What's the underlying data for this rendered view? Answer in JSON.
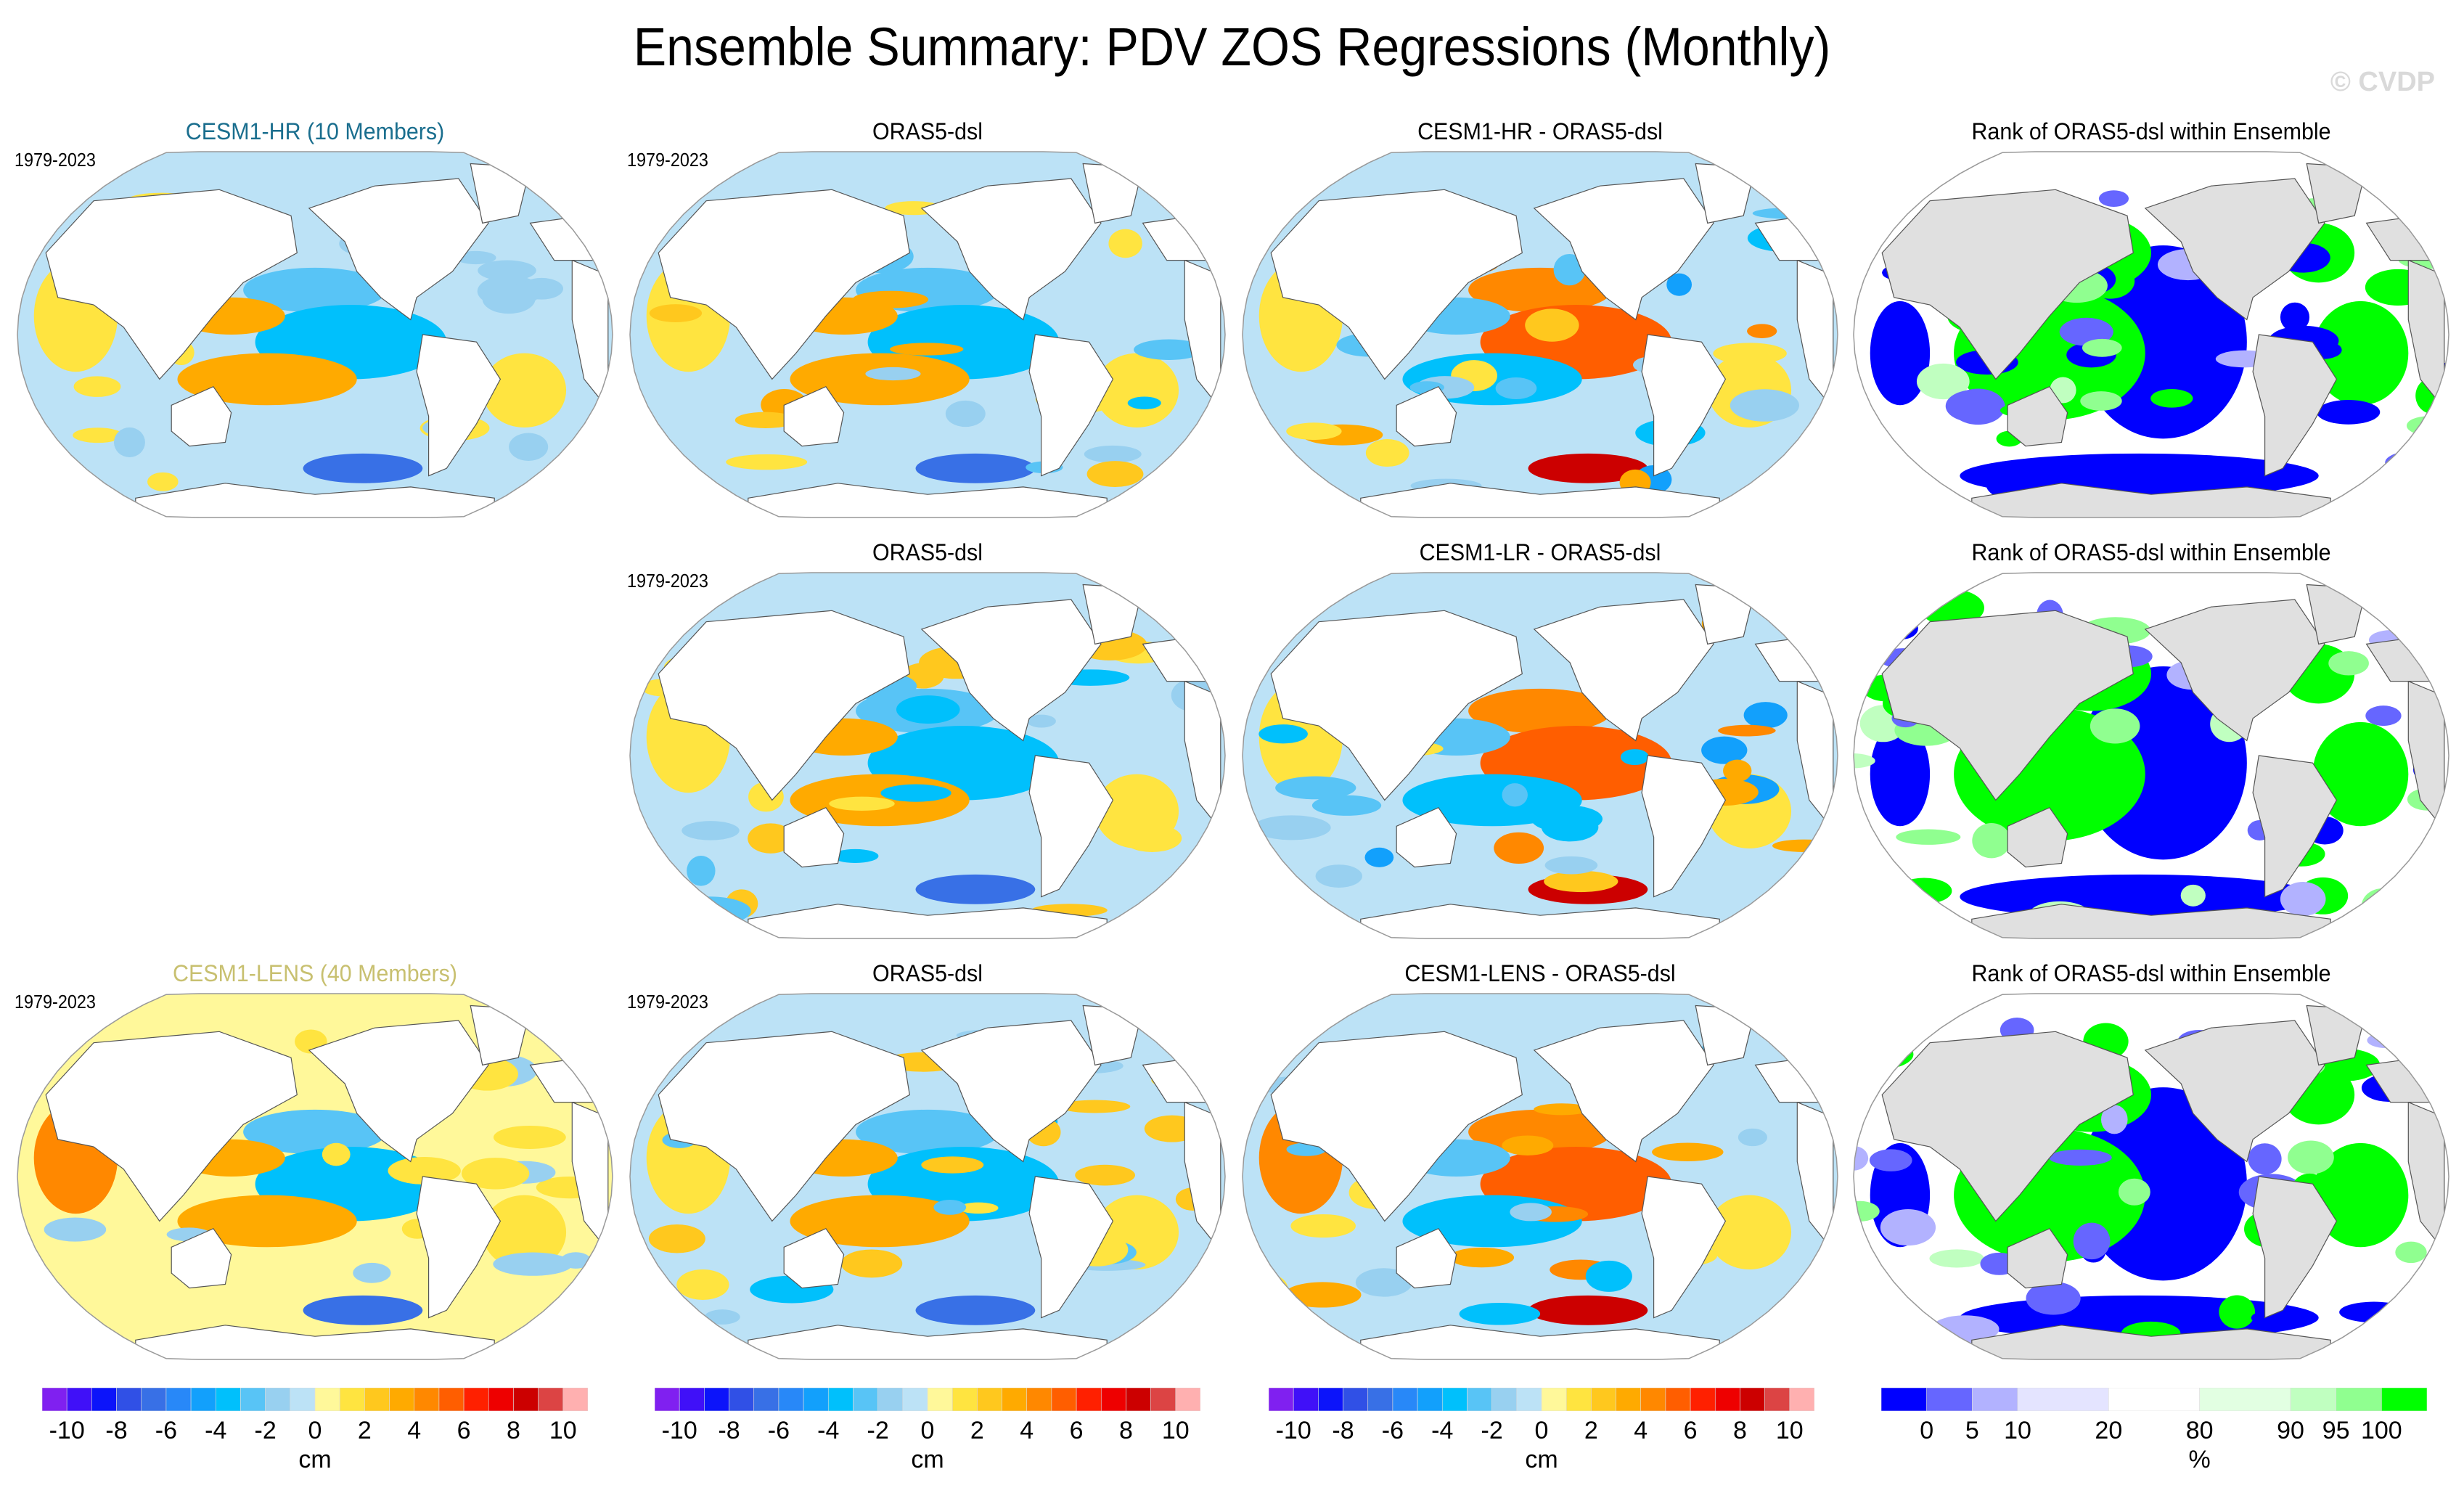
{
  "title": "Ensemble Summary: PDV ZOS Regressions (Monthly)",
  "watermark": "© CVDP",
  "chart_data": {
    "type": "heatmap",
    "title": "Ensemble Summary: PDV ZOS Regressions (Monthly)",
    "projection": "Robinson (Pacific-centered global map)",
    "period": "1979-2023",
    "rows": [
      {
        "model": "CESM1-HR (10 Members)",
        "model_color": "#1a6e8e",
        "panels": [
          {
            "title": "CESM1-HR (10 Members)",
            "years": "1979-2023",
            "kind": "regression"
          },
          {
            "title": "ORAS5-dsl",
            "years": "1979-2023",
            "kind": "regression"
          },
          {
            "title": "CESM1-HR - ORAS5-dsl",
            "years": "",
            "kind": "difference"
          },
          {
            "title": "Rank of ORAS5-dsl within Ensemble",
            "years": "",
            "kind": "rank"
          }
        ]
      },
      {
        "model": "CESM1-LR",
        "model_color": "",
        "panels": [
          null,
          {
            "title": "ORAS5-dsl",
            "years": "1979-2023",
            "kind": "regression"
          },
          {
            "title": "CESM1-LR - ORAS5-dsl",
            "years": "",
            "kind": "difference"
          },
          {
            "title": "Rank of ORAS5-dsl within Ensemble",
            "years": "",
            "kind": "rank"
          }
        ]
      },
      {
        "model": "CESM1-LENS (40 Members)",
        "model_color": "#c8c070",
        "panels": [
          {
            "title": "CESM1-LENS (40 Members)",
            "years": "1979-2023",
            "kind": "regression"
          },
          {
            "title": "ORAS5-dsl",
            "years": "1979-2023",
            "kind": "regression"
          },
          {
            "title": "CESM1-LENS - ORAS5-dsl",
            "years": "",
            "kind": "difference"
          },
          {
            "title": "Rank of ORAS5-dsl within Ensemble",
            "years": "",
            "kind": "rank"
          }
        ]
      }
    ],
    "colorbars": [
      {
        "label": "cm",
        "ticks": [
          "-10",
          "-8",
          "-6",
          "-4",
          "-2",
          "0",
          "2",
          "4",
          "6",
          "8",
          "10"
        ],
        "colors": [
          "#8020f0",
          "#4010f8",
          "#0c14fa",
          "#3050e6",
          "#3870e6",
          "#2888f8",
          "#12a0fc",
          "#00c0fc",
          "#58c4f6",
          "#98d0f0",
          "#bce2f6",
          "#fff89a",
          "#ffe440",
          "#ffc81e",
          "#ffaa00",
          "#ff8800",
          "#ff5e00",
          "#ff2000",
          "#ee0000",
          "#cc0000",
          "#dc4444",
          "#ffb0b0"
        ]
      },
      {
        "label": "cm",
        "ticks": [
          "-10",
          "-8",
          "-6",
          "-4",
          "-2",
          "0",
          "2",
          "4",
          "6",
          "8",
          "10"
        ],
        "colors": [
          "#8020f0",
          "#4010f8",
          "#0c14fa",
          "#3050e6",
          "#3870e6",
          "#2888f8",
          "#12a0fc",
          "#00c0fc",
          "#58c4f6",
          "#98d0f0",
          "#bce2f6",
          "#fff89a",
          "#ffe440",
          "#ffc81e",
          "#ffaa00",
          "#ff8800",
          "#ff5e00",
          "#ff2000",
          "#ee0000",
          "#cc0000",
          "#dc4444",
          "#ffb0b0"
        ]
      },
      {
        "label": "cm",
        "ticks": [
          "-10",
          "-8",
          "-6",
          "-4",
          "-2",
          "0",
          "2",
          "4",
          "6",
          "8",
          "10"
        ],
        "colors": [
          "#8020f0",
          "#4010f8",
          "#0c14fa",
          "#3050e6",
          "#3870e6",
          "#2888f8",
          "#12a0fc",
          "#00c0fc",
          "#58c4f6",
          "#98d0f0",
          "#bce2f6",
          "#fff89a",
          "#ffe440",
          "#ffc81e",
          "#ffaa00",
          "#ff8800",
          "#ff5e00",
          "#ff2000",
          "#ee0000",
          "#cc0000",
          "#dc4444",
          "#ffb0b0"
        ]
      },
      {
        "label": "%",
        "ticks": [
          "0",
          "5",
          "10",
          "20",
          "80",
          "90",
          "95",
          "100"
        ],
        "bins": [
          [
            -5,
            0
          ],
          [
            0,
            5
          ],
          [
            5,
            10
          ],
          [
            10,
            20
          ],
          [
            20,
            80
          ],
          [
            80,
            90
          ],
          [
            90,
            95
          ],
          [
            95,
            100
          ],
          [
            100,
            105
          ]
        ],
        "colors": [
          "#0000ff",
          "#6666ff",
          "#b2b2ff",
          "#e4e4ff",
          "#ffffff",
          "#e2ffe2",
          "#c0ffc0",
          "#90ff90",
          "#00ff00"
        ]
      }
    ],
    "land_color_regression": "#ffffff",
    "land_color_rank": "#e0e0e0"
  }
}
